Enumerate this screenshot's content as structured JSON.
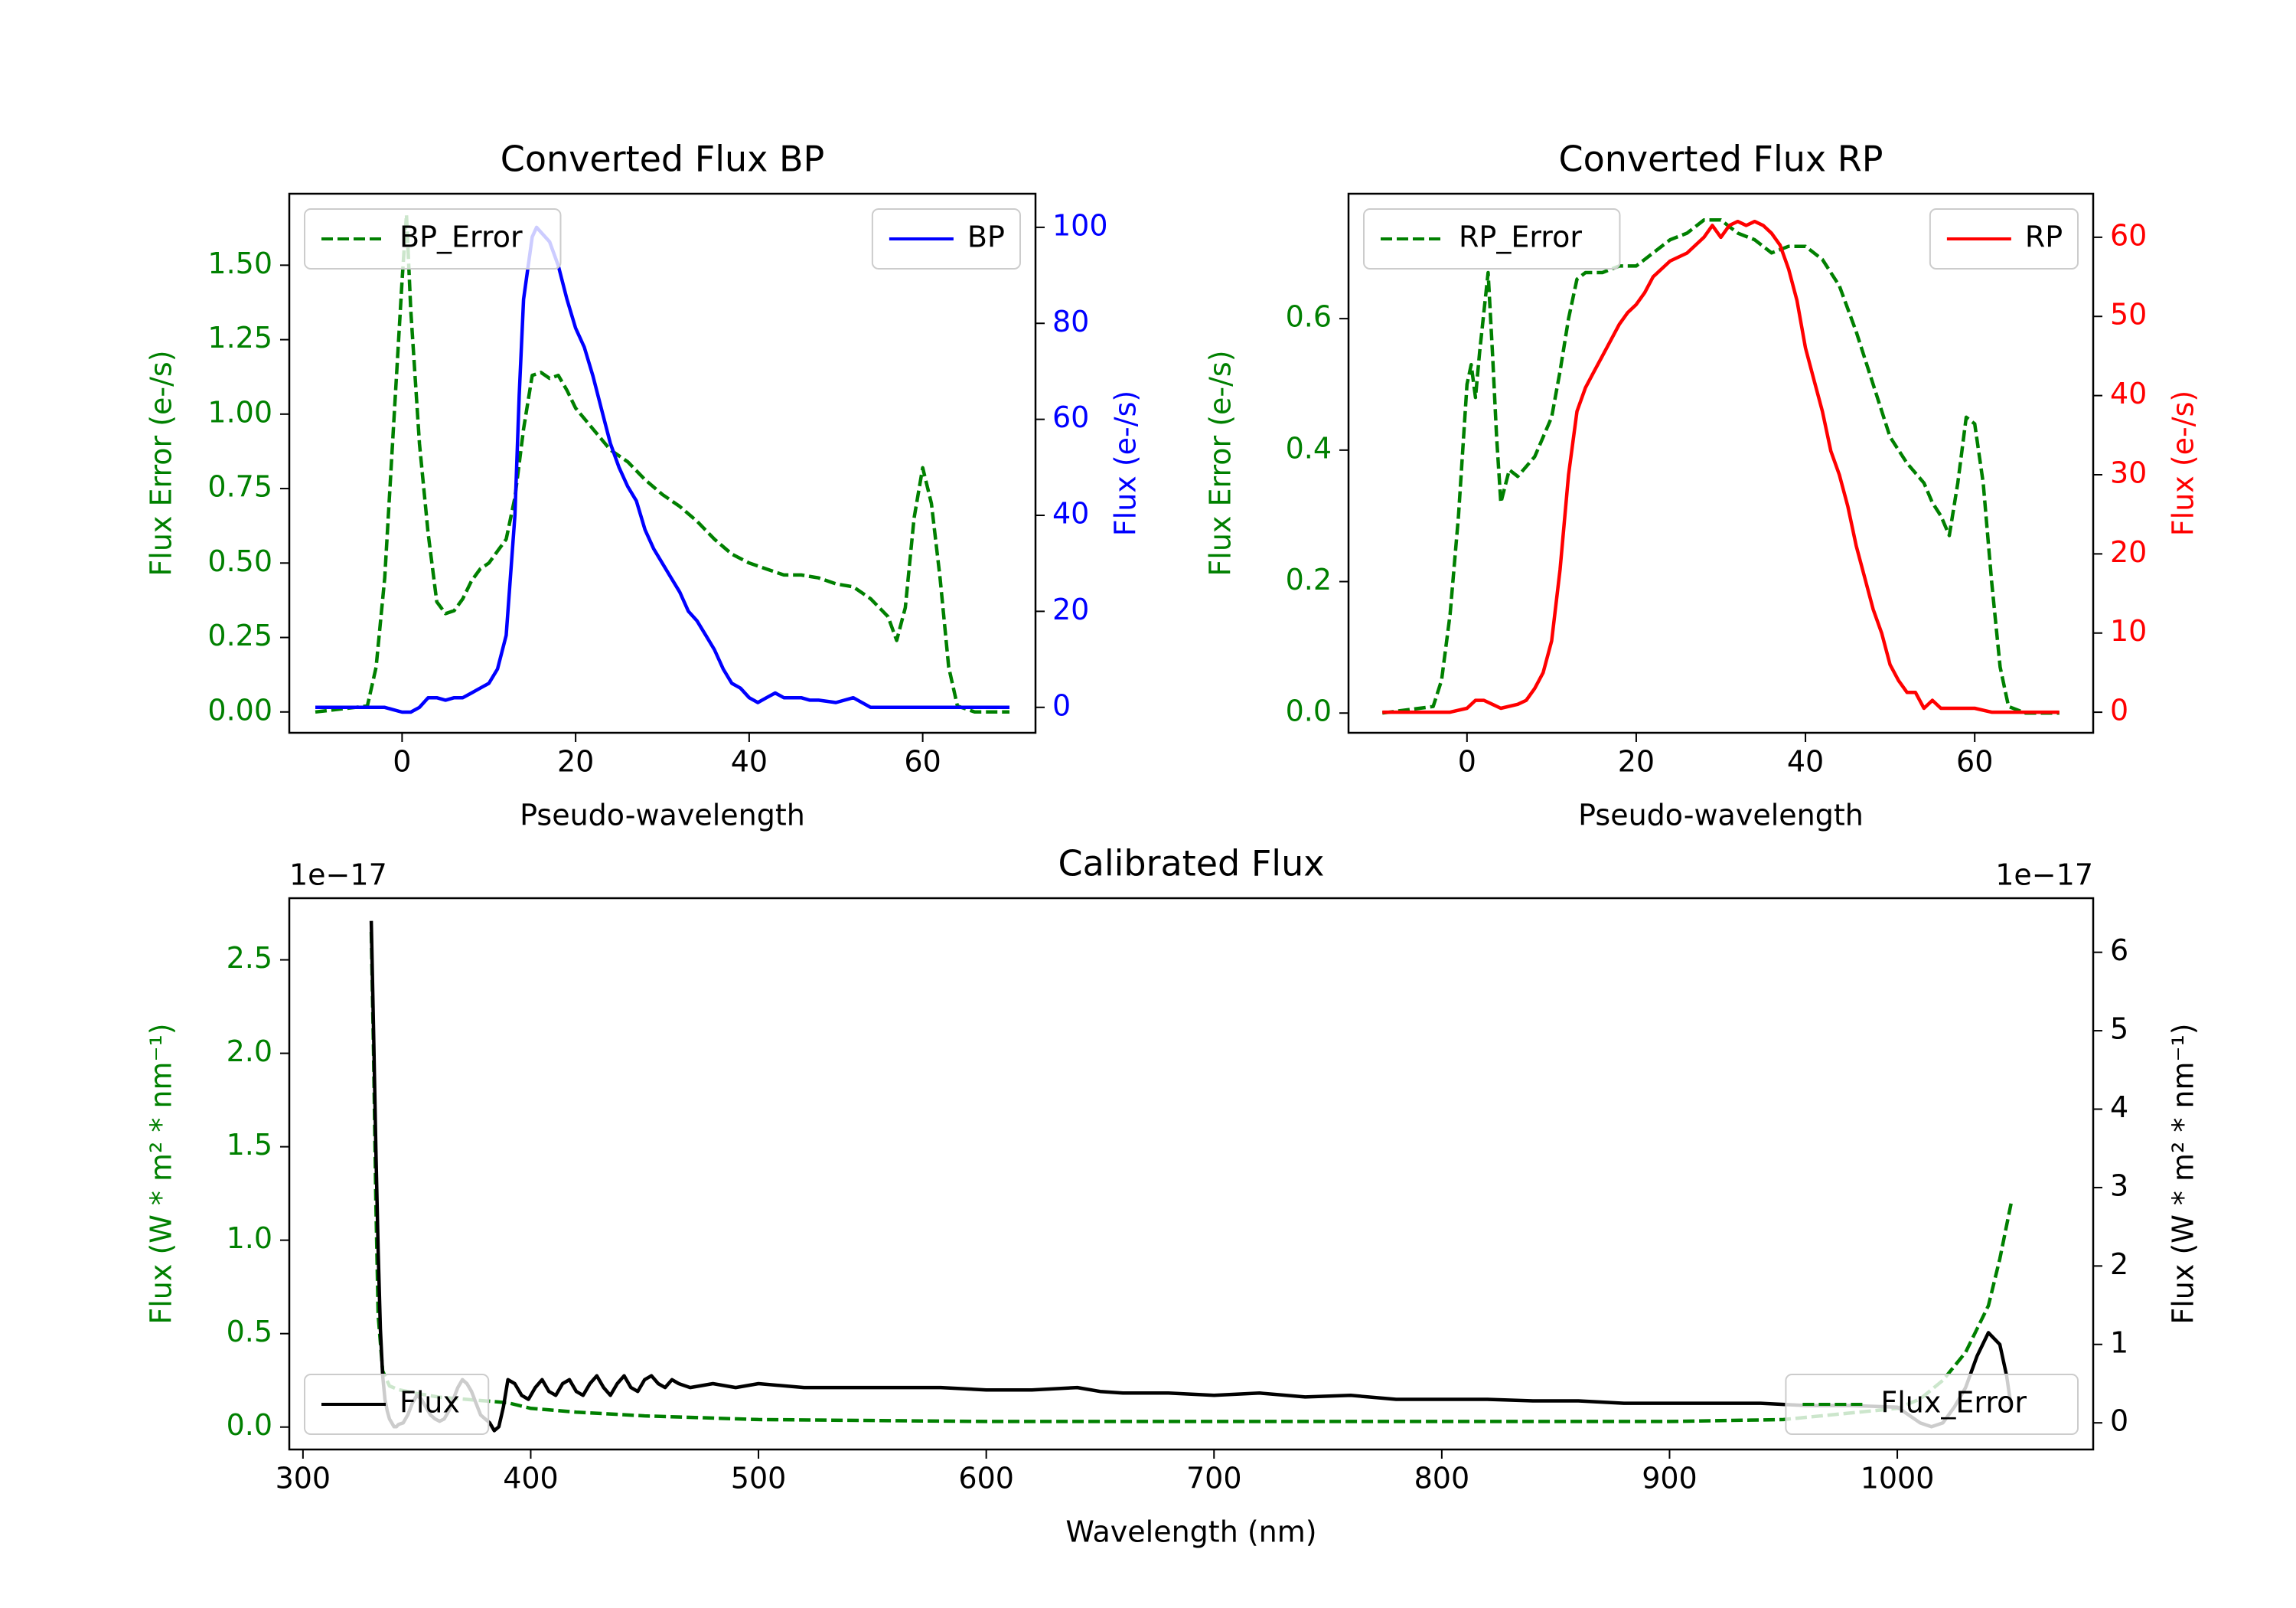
{
  "chart_data": [
    {
      "id": "bp",
      "type": "line",
      "title": "Converted Flux BP",
      "xlabel": "Pseudo-wavelength",
      "xlim": [
        -13,
        73
      ],
      "xticks": [
        0,
        20,
        40,
        60
      ],
      "left_axis": {
        "label": "Flux Error (e-/s)",
        "color": "#008000",
        "ylim": [
          -0.07,
          1.74
        ],
        "ticks": [
          0.0,
          0.25,
          0.5,
          0.75,
          1.0,
          1.25,
          1.5
        ],
        "tick_labels": [
          "0.00",
          "0.25",
          "0.50",
          "0.75",
          "1.00",
          "1.25",
          "1.50"
        ]
      },
      "right_axis": {
        "label": "Flux (e-/s)",
        "color": "#0000ff",
        "ylim": [
          -5.3,
          107
        ],
        "ticks": [
          0,
          20,
          40,
          60,
          80,
          100
        ],
        "tick_labels": [
          "0",
          "20",
          "40",
          "60",
          "80",
          "100"
        ]
      },
      "series": [
        {
          "name": "BP_Error",
          "axis": "left",
          "color": "#008000",
          "dash": true,
          "x": [
            -10,
            -4,
            -3,
            -2,
            -1,
            0,
            0.5,
            1,
            2,
            3,
            4,
            5,
            6,
            7,
            8,
            9,
            10,
            11,
            12,
            13,
            14,
            15,
            16,
            17,
            18,
            19,
            20,
            22,
            24,
            26,
            28,
            30,
            32,
            34,
            36,
            38,
            40,
            42,
            44,
            46,
            48,
            50,
            52,
            54,
            56,
            57,
            58,
            59,
            60,
            61,
            62,
            63,
            64,
            66,
            70
          ],
          "y": [
            0.0,
            0.02,
            0.15,
            0.45,
            0.95,
            1.45,
            1.67,
            1.35,
            0.9,
            0.6,
            0.37,
            0.33,
            0.34,
            0.38,
            0.44,
            0.48,
            0.5,
            0.54,
            0.58,
            0.72,
            0.95,
            1.13,
            1.14,
            1.12,
            1.13,
            1.08,
            1.02,
            0.95,
            0.88,
            0.84,
            0.78,
            0.73,
            0.69,
            0.64,
            0.58,
            0.53,
            0.5,
            0.48,
            0.46,
            0.46,
            0.45,
            0.43,
            0.42,
            0.38,
            0.32,
            0.24,
            0.35,
            0.65,
            0.82,
            0.7,
            0.45,
            0.15,
            0.02,
            0.0,
            0.0
          ]
        },
        {
          "name": "BP",
          "axis": "right",
          "color": "#0000ff",
          "dash": false,
          "x": [
            -10,
            -4,
            -2,
            0,
            1,
            2,
            3,
            4,
            5,
            6,
            7,
            8,
            9,
            10,
            11,
            12,
            13,
            13.5,
            14,
            15,
            15.5,
            16,
            17,
            18,
            19,
            20,
            21,
            22,
            23,
            24,
            25,
            26,
            27,
            28,
            29,
            30,
            31,
            32,
            33,
            34,
            35,
            36,
            37,
            38,
            39,
            40,
            41,
            42,
            43,
            44,
            45,
            46,
            47,
            48,
            50,
            52,
            54,
            56,
            60,
            65,
            70
          ],
          "y": [
            0,
            0,
            0,
            -1,
            -1,
            0,
            2,
            2,
            1.5,
            2,
            2,
            3,
            4,
            5,
            8,
            15,
            40,
            65,
            85,
            98,
            100,
            99,
            97,
            92,
            85,
            79,
            75,
            69,
            62,
            55,
            50,
            46,
            43,
            37,
            33,
            30,
            27,
            24,
            20,
            18,
            15,
            12,
            8,
            5,
            4,
            2,
            1,
            2,
            3,
            2,
            2,
            2,
            1.5,
            1.5,
            1,
            2,
            0,
            0,
            0,
            0,
            0
          ]
        }
      ],
      "legend_left": {
        "location": "upper left",
        "entries": [
          "BP_Error"
        ]
      },
      "legend_right": {
        "location": "upper right",
        "entries": [
          "BP"
        ]
      }
    },
    {
      "id": "rp",
      "type": "line",
      "title": "Converted Flux RP",
      "xlabel": "Pseudo-wavelength",
      "xlim": [
        -14,
        74
      ],
      "xticks": [
        0,
        20,
        40,
        60
      ],
      "left_axis": {
        "label": "Flux Error (e-/s)",
        "color": "#008000",
        "ylim": [
          -0.03,
          0.79
        ],
        "ticks": [
          0.0,
          0.2,
          0.4,
          0.6
        ],
        "tick_labels": [
          "0.0",
          "0.2",
          "0.4",
          "0.6"
        ]
      },
      "right_axis": {
        "label": "Flux (e-/s)",
        "color": "#ff0000",
        "ylim": [
          -2.6,
          65.5
        ],
        "ticks": [
          0,
          10,
          20,
          30,
          40,
          50,
          60
        ],
        "tick_labels": [
          "0",
          "10",
          "20",
          "30",
          "40",
          "50",
          "60"
        ]
      },
      "series": [
        {
          "name": "RP_Error",
          "axis": "left",
          "color": "#008000",
          "dash": true,
          "x": [
            -10,
            -4,
            -3,
            -2,
            -1,
            0,
            0.5,
            1,
            1.5,
            2,
            2.5,
            3,
            3.5,
            4,
            5,
            6,
            8,
            10,
            11,
            12,
            13,
            14,
            16,
            18,
            20,
            22,
            24,
            26,
            28,
            30,
            32,
            34,
            36,
            38,
            40,
            42,
            44,
            46,
            48,
            50,
            52,
            54,
            55,
            56,
            57,
            58,
            59,
            60,
            61,
            62,
            63,
            64,
            66,
            70
          ],
          "y": [
            0.0,
            0.01,
            0.05,
            0.15,
            0.3,
            0.5,
            0.53,
            0.48,
            0.55,
            0.61,
            0.67,
            0.55,
            0.42,
            0.32,
            0.37,
            0.36,
            0.39,
            0.45,
            0.52,
            0.6,
            0.66,
            0.67,
            0.67,
            0.68,
            0.68,
            0.7,
            0.72,
            0.73,
            0.75,
            0.75,
            0.73,
            0.72,
            0.7,
            0.71,
            0.71,
            0.69,
            0.65,
            0.58,
            0.5,
            0.42,
            0.38,
            0.35,
            0.32,
            0.3,
            0.27,
            0.35,
            0.45,
            0.44,
            0.35,
            0.2,
            0.07,
            0.01,
            0.0,
            0.0
          ]
        },
        {
          "name": "RP",
          "axis": "right",
          "color": "#ff0000",
          "dash": false,
          "x": [
            -10,
            -2,
            0,
            1,
            2,
            3,
            4,
            6,
            7,
            8,
            9,
            10,
            11,
            12,
            13,
            14,
            15,
            16,
            17,
            18,
            19,
            20,
            21,
            22,
            24,
            26,
            28,
            29,
            30,
            31,
            32,
            33,
            34,
            35,
            36,
            37,
            38,
            39,
            40,
            41,
            42,
            43,
            44,
            45,
            46,
            47,
            48,
            49,
            50,
            51,
            52,
            53,
            54,
            55,
            56,
            58,
            60,
            62,
            66,
            70
          ],
          "y": [
            0,
            0,
            0.5,
            1.5,
            1.5,
            1,
            0.5,
            1,
            1.5,
            3,
            5,
            9,
            18,
            30,
            38,
            41,
            43,
            45,
            47,
            49,
            50.5,
            51.5,
            53,
            55,
            57,
            58,
            60,
            61.5,
            60,
            61.5,
            62,
            61.5,
            62,
            61.5,
            60.5,
            59,
            56,
            52,
            46,
            42,
            38,
            33,
            30,
            26,
            21,
            17,
            13,
            10,
            6,
            4,
            2.5,
            2.5,
            0.5,
            1.5,
            0.5,
            0.5,
            0.5,
            0,
            0,
            0
          ]
        }
      ],
      "legend_left": {
        "location": "upper left",
        "entries": [
          "RP_Error"
        ]
      },
      "legend_right": {
        "location": "upper right",
        "entries": [
          "RP"
        ]
      }
    },
    {
      "id": "cal",
      "type": "line",
      "title": "Calibrated Flux",
      "xlabel": "Wavelength (nm)",
      "xlim": [
        294,
        1086
      ],
      "xticks": [
        300,
        400,
        500,
        600,
        700,
        800,
        900,
        1000
      ],
      "left_axis": {
        "label": "Flux (W * m² * nm⁻¹)",
        "color": "#008000",
        "offset_text": "1e−17",
        "ylim": [
          -0.12,
          2.83
        ],
        "ticks": [
          0.0,
          0.5,
          1.0,
          1.5,
          2.0,
          2.5
        ],
        "tick_labels": [
          "0.0",
          "0.5",
          "1.0",
          "1.5",
          "2.0",
          "2.5"
        ]
      },
      "right_axis": {
        "label": "Flux (W * m² * nm⁻¹)",
        "color": "#000000",
        "offset_text": "1e−17",
        "ylim": [
          -0.34,
          6.69
        ],
        "ticks": [
          0,
          1,
          2,
          3,
          4,
          5,
          6
        ],
        "tick_labels": [
          "0",
          "1",
          "2",
          "3",
          "4",
          "5",
          "6"
        ]
      },
      "series": [
        {
          "name": "Flux_Error",
          "axis": "left",
          "color": "#008000",
          "dash": true,
          "x": [
            330,
            331,
            332,
            333,
            335,
            338,
            342,
            350,
            360,
            370,
            380,
            390,
            400,
            420,
            450,
            500,
            600,
            700,
            800,
            900,
            950,
            1000,
            1010,
            1020,
            1030,
            1040,
            1045,
            1050
          ],
          "y": [
            2.65,
            2.0,
            1.2,
            0.6,
            0.3,
            0.22,
            0.2,
            0.18,
            0.16,
            0.15,
            0.14,
            0.13,
            0.1,
            0.08,
            0.06,
            0.04,
            0.03,
            0.03,
            0.03,
            0.03,
            0.04,
            0.1,
            0.15,
            0.25,
            0.4,
            0.65,
            0.9,
            1.2
          ]
        },
        {
          "name": "Flux",
          "axis": "right",
          "color": "#000000",
          "dash": false,
          "x": [
            330,
            331,
            332,
            333,
            334,
            335,
            336,
            337,
            338,
            339,
            340,
            341,
            342,
            344,
            346,
            348,
            350,
            352,
            354,
            356,
            358,
            360,
            362,
            364,
            366,
            368,
            370,
            372,
            374,
            376,
            378,
            380,
            382,
            384,
            386,
            388,
            390,
            393,
            396,
            399,
            402,
            405,
            408,
            411,
            414,
            417,
            420,
            423,
            426,
            429,
            432,
            435,
            438,
            441,
            444,
            447,
            450,
            453,
            456,
            459,
            462,
            465,
            470,
            480,
            490,
            500,
            520,
            550,
            580,
            600,
            620,
            640,
            650,
            660,
            680,
            700,
            720,
            740,
            760,
            780,
            800,
            820,
            840,
            860,
            880,
            900,
            920,
            940,
            960,
            980,
            1000,
            1005,
            1010,
            1015,
            1020,
            1025,
            1030,
            1035,
            1040,
            1045,
            1048,
            1050
          ],
          "y": [
            6.4,
            5.0,
            3.5,
            2.2,
            1.2,
            0.6,
            0.3,
            0.15,
            0.05,
            0.0,
            -0.05,
            -0.05,
            -0.02,
            0.0,
            0.1,
            0.25,
            0.35,
            0.3,
            0.2,
            0.1,
            0.05,
            0.02,
            0.05,
            0.15,
            0.3,
            0.45,
            0.55,
            0.5,
            0.4,
            0.25,
            0.1,
            0.05,
            0.0,
            -0.1,
            -0.05,
            0.2,
            0.55,
            0.5,
            0.35,
            0.3,
            0.45,
            0.55,
            0.4,
            0.35,
            0.5,
            0.55,
            0.4,
            0.35,
            0.5,
            0.6,
            0.45,
            0.35,
            0.5,
            0.6,
            0.45,
            0.4,
            0.55,
            0.6,
            0.5,
            0.45,
            0.55,
            0.5,
            0.45,
            0.5,
            0.45,
            0.5,
            0.45,
            0.45,
            0.45,
            0.42,
            0.42,
            0.45,
            0.4,
            0.38,
            0.38,
            0.35,
            0.38,
            0.33,
            0.35,
            0.3,
            0.3,
            0.3,
            0.28,
            0.28,
            0.25,
            0.25,
            0.25,
            0.25,
            0.22,
            0.22,
            0.2,
            0.1,
            0.0,
            -0.05,
            0.0,
            0.2,
            0.45,
            0.85,
            1.15,
            1.0,
            0.6,
            0.2
          ]
        }
      ],
      "legend_left": {
        "location": "lower left",
        "entries": [
          "Flux"
        ]
      },
      "legend_right": {
        "location": "lower right",
        "entries": [
          "Flux_Error"
        ]
      }
    }
  ]
}
